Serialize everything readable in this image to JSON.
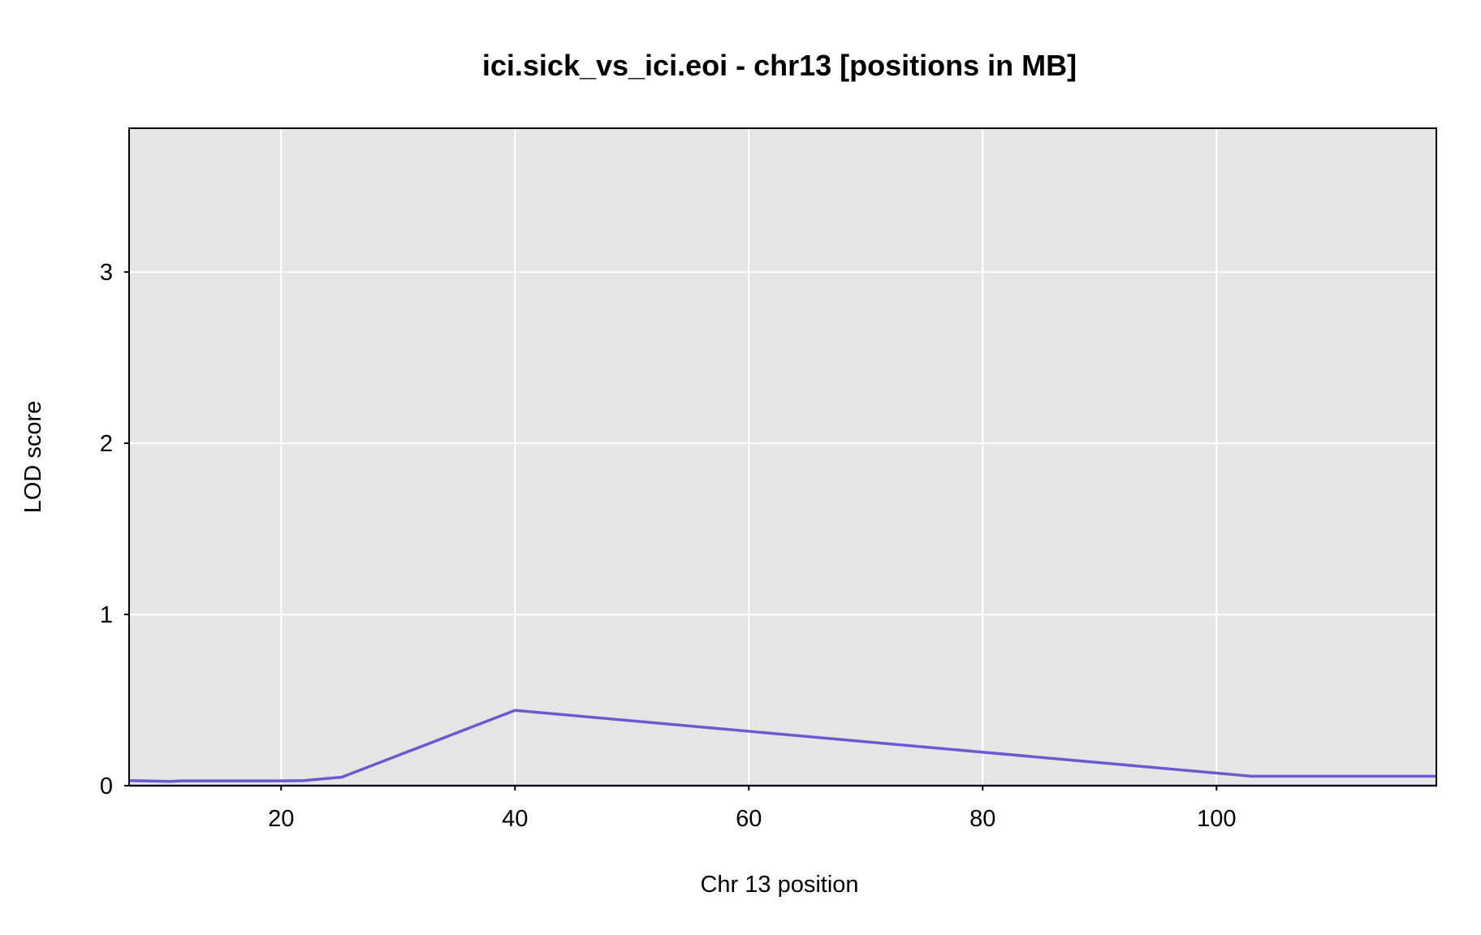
{
  "chart_data": {
    "type": "line",
    "title": "ici.sick_vs_ici.eoi - chr13 [positions in MB]",
    "xlabel": "Chr 13 position",
    "ylabel": "LOD score",
    "xlim": [
      7,
      118.8
    ],
    "ylim": [
      0,
      3.84
    ],
    "grid": true,
    "legend": "none",
    "x_ticks": [
      20,
      40,
      60,
      80,
      100
    ],
    "y_ticks": [
      0,
      1,
      2,
      3
    ],
    "x_tick_labels": [
      "20",
      "40",
      "60",
      "80",
      "100"
    ],
    "y_tick_labels": [
      "0",
      "1",
      "2",
      "3"
    ],
    "background_color": "#e5e5e5",
    "grid_color": "#ffffff",
    "baseline_color": "#2b1aa8",
    "series": [
      {
        "color": "#6a5acd",
        "x": [
          7.0,
          10.5,
          11.5,
          15.0,
          20.0,
          22.0,
          25.2,
          40.0,
          103.0,
          118.8
        ],
        "y": [
          0.03,
          0.025,
          0.028,
          0.028,
          0.028,
          0.03,
          0.05,
          0.44,
          0.055,
          0.055
        ]
      }
    ]
  }
}
